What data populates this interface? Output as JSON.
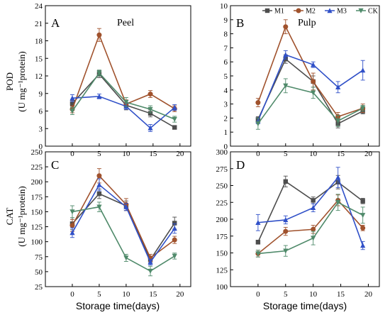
{
  "colors": {
    "M1": "#4d4d4d",
    "M2": "#a0522d",
    "M3": "#3050c8",
    "CK": "#4f8a6a"
  },
  "legend": {
    "entries": [
      "M1",
      "M2",
      "M3",
      "CK"
    ],
    "placement": "top-right of panel B"
  },
  "chart_data": [
    {
      "type": "line",
      "panel": "A",
      "title": "Peel",
      "ylabel_line1": "POD",
      "ylabel_line2": "(U mg⁻¹protein)",
      "xlabel": "",
      "ylim": [
        0,
        24
      ],
      "yticks": [
        0,
        3,
        6,
        9,
        12,
        15,
        18,
        21,
        24
      ],
      "xlim": [
        -5,
        22
      ],
      "xticks": [
        0,
        5,
        10,
        15,
        20
      ],
      "x": [
        0,
        5,
        10,
        14.5,
        19
      ],
      "series": [
        {
          "name": "M1",
          "values": [
            7.3,
            12.3,
            7.0,
            5.6,
            3.2
          ],
          "err": [
            0.5,
            0.6,
            0.8,
            0.6,
            0.3
          ]
        },
        {
          "name": "M2",
          "values": [
            6.3,
            19.0,
            7.2,
            8.9,
            6.4
          ],
          "err": [
            0.6,
            1.1,
            0.7,
            0.6,
            0.5
          ]
        },
        {
          "name": "M3",
          "values": [
            8.2,
            8.5,
            6.8,
            3.1,
            6.6
          ],
          "err": [
            0.6,
            0.4,
            0.5,
            0.6,
            0.5
          ]
        },
        {
          "name": "CK",
          "values": [
            6.0,
            12.5,
            7.5,
            6.3,
            4.6
          ],
          "err": [
            0.6,
            0.5,
            0.8,
            0.6,
            0.5
          ]
        }
      ]
    },
    {
      "type": "line",
      "panel": "B",
      "title": "Pulp",
      "ylabel_line1": "",
      "ylabel_line2": "",
      "xlabel": "",
      "ylim": [
        0,
        10
      ],
      "yticks": [
        0,
        1,
        2,
        3,
        4,
        5,
        6,
        7,
        8,
        9,
        10
      ],
      "xlim": [
        -5,
        22
      ],
      "xticks": [
        0,
        5,
        10,
        15,
        20
      ],
      "x": [
        0,
        5,
        10,
        14.5,
        19
      ],
      "series": [
        {
          "name": "M1",
          "values": [
            1.9,
            6.2,
            4.6,
            1.6,
            2.5
          ],
          "err": [
            0.2,
            0.3,
            0.4,
            0.3,
            0.2
          ]
        },
        {
          "name": "M2",
          "values": [
            3.1,
            8.5,
            4.6,
            2.1,
            2.7
          ],
          "err": [
            0.3,
            0.5,
            0.6,
            0.3,
            0.3
          ]
        },
        {
          "name": "M3",
          "values": [
            1.8,
            6.5,
            5.8,
            4.2,
            5.4
          ],
          "err": [
            0.2,
            0.3,
            0.2,
            0.4,
            0.7
          ]
        },
        {
          "name": "CK",
          "values": [
            1.6,
            4.3,
            3.8,
            1.8,
            2.7
          ],
          "err": [
            0.4,
            0.5,
            0.4,
            0.4,
            0.2
          ]
        }
      ]
    },
    {
      "type": "line",
      "panel": "C",
      "title": "",
      "ylabel_line1": "CAT",
      "ylabel_line2": "(U mg⁻¹protein)",
      "xlabel": "",
      "ylim": [
        25,
        250
      ],
      "yticks": [
        25,
        50,
        75,
        100,
        125,
        150,
        175,
        200,
        225,
        250
      ],
      "xlim": [
        -5,
        22
      ],
      "xticks": [
        0,
        5,
        10,
        15,
        20
      ],
      "x": [
        0,
        5,
        10,
        14.5,
        19
      ],
      "series": [
        {
          "name": "M1",
          "values": [
            130,
            180,
            160,
            70,
            131
          ],
          "err": [
            10,
            8,
            8,
            5,
            10
          ]
        },
        {
          "name": "M2",
          "values": [
            127,
            210,
            162,
            73,
            103
          ],
          "err": [
            10,
            12,
            10,
            6,
            6
          ]
        },
        {
          "name": "M3",
          "values": [
            115,
            195,
            158,
            66,
            122
          ],
          "err": [
            8,
            10,
            6,
            5,
            8
          ]
        },
        {
          "name": "CK",
          "values": [
            150,
            158,
            73,
            51,
            76
          ],
          "err": [
            10,
            8,
            6,
            8,
            5
          ]
        }
      ]
    },
    {
      "type": "line",
      "panel": "D",
      "title": "",
      "ylabel_line1": "",
      "ylabel_line2": "",
      "xlabel": "",
      "ylim": [
        100,
        300
      ],
      "yticks": [
        100,
        125,
        150,
        175,
        200,
        225,
        250,
        275,
        300
      ],
      "xlim": [
        -5,
        22
      ],
      "xticks": [
        0,
        5,
        10,
        15,
        20
      ],
      "x": [
        0,
        5,
        10,
        14.5,
        19
      ],
      "series": [
        {
          "name": "M1",
          "values": [
            166,
            256,
            228,
            255,
            227
          ],
          "err": [
            3,
            8,
            5,
            10,
            4
          ]
        },
        {
          "name": "M2",
          "values": [
            149,
            182,
            185,
            228,
            187
          ],
          "err": [
            5,
            6,
            6,
            8,
            4
          ]
        },
        {
          "name": "M3",
          "values": [
            195,
            199,
            217,
            262,
            161
          ],
          "err": [
            12,
            6,
            6,
            15,
            6
          ]
        },
        {
          "name": "CK",
          "values": [
            149,
            153,
            172,
            225,
            206
          ],
          "err": [
            5,
            8,
            10,
            12,
            12
          ]
        }
      ]
    }
  ],
  "xaxis_title": "Storage time(days)"
}
